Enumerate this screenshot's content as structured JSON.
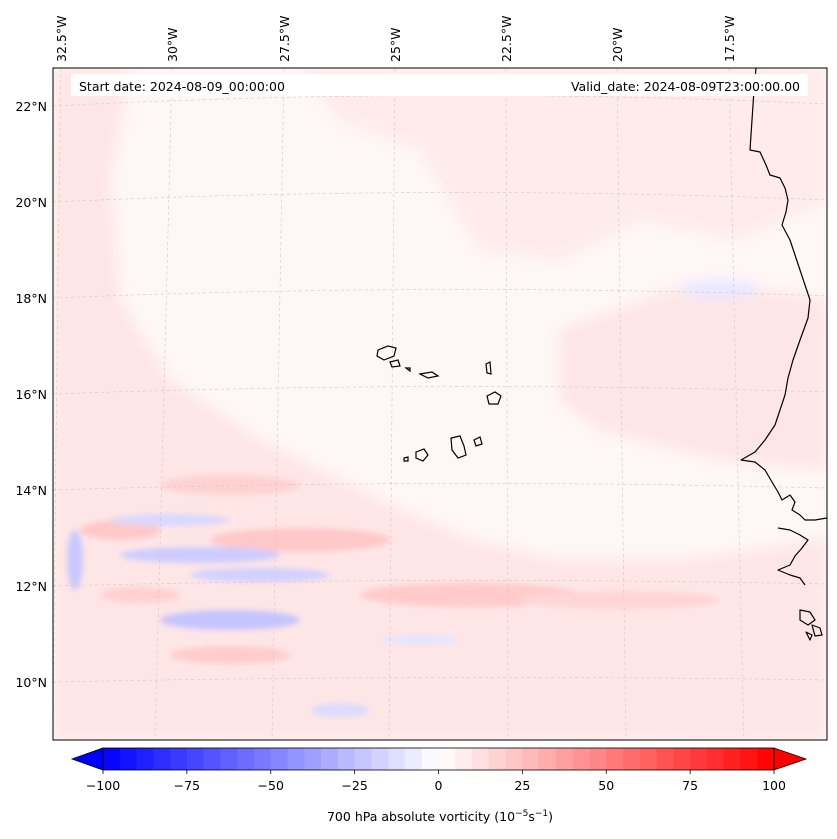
{
  "header": {
    "start_date": "Start date: 2024-08-09_00:00:00",
    "valid_date": "Valid_date: 2024-08-09T23:00:00.00"
  },
  "longitude_labels": [
    "32.5°W",
    "30°W",
    "27.5°W",
    "25°W",
    "22.5°W",
    "20°W",
    "17.5°W"
  ],
  "latitude_labels": [
    "22°N",
    "20°N",
    "18°N",
    "16°N",
    "14°N",
    "12°N",
    "10°N"
  ],
  "colorbar": {
    "label": "700 hPa absolute vorticity",
    "label_units_base": "10",
    "label_units_exp1": "−5",
    "label_units_s": "s",
    "label_units_exp2": "−1",
    "tick_labels": [
      "−100",
      "−75",
      "−50",
      "−25",
      "0",
      "25",
      "50",
      "75",
      "100"
    ],
    "min": -100,
    "max": 100,
    "min_color": "#0000ff",
    "mid_color": "#ffffff",
    "max_color": "#ff0000"
  },
  "colors": {
    "background_field": "#fff6f6",
    "positive_weak": "#ffe2e2",
    "positive_mid": "#ffc8c8",
    "negative_weak": "#e6e6ff",
    "negative_mid": "#c8c8ff",
    "coast": "#000000",
    "grid": "#c8c8c8"
  }
}
